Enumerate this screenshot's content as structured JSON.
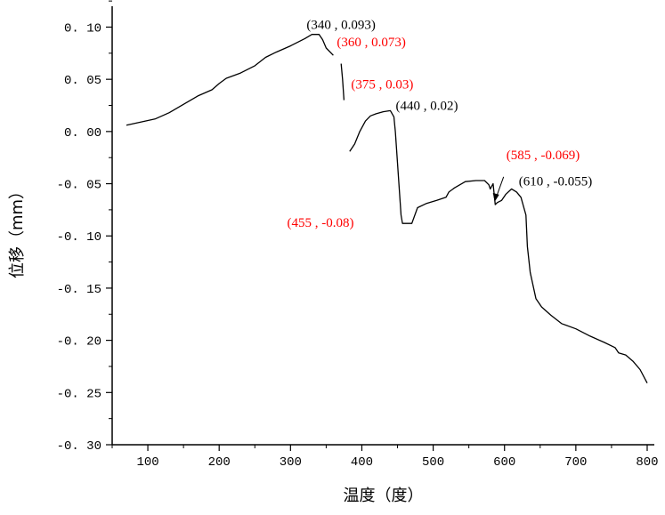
{
  "chart_data": {
    "type": "line",
    "xlabel": "温度（度）",
    "ylabel": "位移（mm）",
    "xlim": [
      50,
      810
    ],
    "ylim": [
      -0.3,
      0.12
    ],
    "x_ticks": [
      100,
      200,
      300,
      400,
      500,
      600,
      700,
      800
    ],
    "y_ticks": [
      0.1,
      0.05,
      0.0,
      -0.05,
      -0.1,
      -0.15,
      -0.2,
      -0.25,
      -0.3
    ],
    "y_tick_labels": [
      "0. 10",
      "0. 05",
      "0. 00",
      "-0. 05",
      "-0. 10",
      "-0. 15",
      "-0. 20",
      "-0. 25",
      "-0. 30"
    ],
    "grid": false,
    "series": [
      {
        "color": "#000000",
        "segments": [
          [
            [
              70,
              0.006
            ],
            [
              90,
              0.009
            ],
            [
              110,
              0.012
            ],
            [
              130,
              0.018
            ],
            [
              150,
              0.026
            ],
            [
              170,
              0.034
            ],
            [
              190,
              0.04
            ],
            [
              200,
              0.046
            ],
            [
              210,
              0.051
            ],
            [
              230,
              0.056
            ],
            [
              250,
              0.063
            ],
            [
              265,
              0.071
            ],
            [
              280,
              0.076
            ],
            [
              300,
              0.082
            ],
            [
              320,
              0.089
            ],
            [
              330,
              0.093
            ],
            [
              340,
              0.093
            ],
            [
              345,
              0.088
            ],
            [
              350,
              0.08
            ],
            [
              360,
              0.073
            ]
          ],
          [
            [
              371,
              0.065
            ],
            [
              373,
              0.05
            ],
            [
              375,
              0.03
            ]
          ],
          [
            [
              383,
              -0.019
            ],
            [
              390,
              -0.012
            ],
            [
              397,
              0.0
            ],
            [
              405,
              0.01
            ],
            [
              412,
              0.015
            ],
            [
              420,
              0.017
            ],
            [
              430,
              0.019
            ],
            [
              440,
              0.02
            ],
            [
              445,
              0.014
            ],
            [
              447,
              0.0
            ],
            [
              450,
              -0.03
            ],
            [
              453,
              -0.06
            ],
            [
              455,
              -0.08
            ],
            [
              457,
              -0.088
            ],
            [
              470,
              -0.088
            ],
            [
              478,
              -0.073
            ],
            [
              490,
              -0.069
            ],
            [
              505,
              -0.066
            ],
            [
              518,
              -0.063
            ],
            [
              522,
              -0.058
            ],
            [
              530,
              -0.054
            ],
            [
              545,
              -0.048
            ],
            [
              560,
              -0.047
            ],
            [
              572,
              -0.047
            ],
            [
              578,
              -0.051
            ],
            [
              580,
              -0.055
            ],
            [
              584,
              -0.05
            ],
            [
              587,
              -0.07
            ],
            [
              590,
              -0.068
            ],
            [
              596,
              -0.066
            ],
            [
              602,
              -0.06
            ],
            [
              610,
              -0.055
            ],
            [
              617,
              -0.058
            ],
            [
              623,
              -0.063
            ],
            [
              630,
              -0.08
            ],
            [
              632,
              -0.11
            ],
            [
              636,
              -0.135
            ],
            [
              644,
              -0.16
            ],
            [
              652,
              -0.168
            ],
            [
              665,
              -0.176
            ],
            [
              680,
              -0.184
            ],
            [
              700,
              -0.189
            ],
            [
              720,
              -0.196
            ],
            [
              740,
              -0.202
            ],
            [
              755,
              -0.207
            ],
            [
              760,
              -0.212
            ],
            [
              770,
              -0.214
            ],
            [
              780,
              -0.22
            ],
            [
              790,
              -0.228
            ],
            [
              800,
              -0.241
            ]
          ]
        ]
      }
    ],
    "annotations": [
      {
        "text": "(340 , 0.093)",
        "x": 340,
        "y": 0.093,
        "color": "#000000"
      },
      {
        "text": "(360 , 0.073)",
        "x": 360,
        "y": 0.073,
        "color": "#ff0000"
      },
      {
        "text": "(375 , 0.03)",
        "x": 375,
        "y": 0.03,
        "color": "#ff0000"
      },
      {
        "text": "(440 , 0.02)",
        "x": 440,
        "y": 0.02,
        "color": "#000000"
      },
      {
        "text": "(455 , -0.08)",
        "x": 455,
        "y": -0.08,
        "color": "#ff0000"
      },
      {
        "text": "(585 , -0.069)",
        "x": 585,
        "y": -0.069,
        "color": "#ff0000"
      },
      {
        "text": "(610 , -0.055)",
        "x": 610,
        "y": -0.055,
        "color": "#000000"
      }
    ]
  }
}
